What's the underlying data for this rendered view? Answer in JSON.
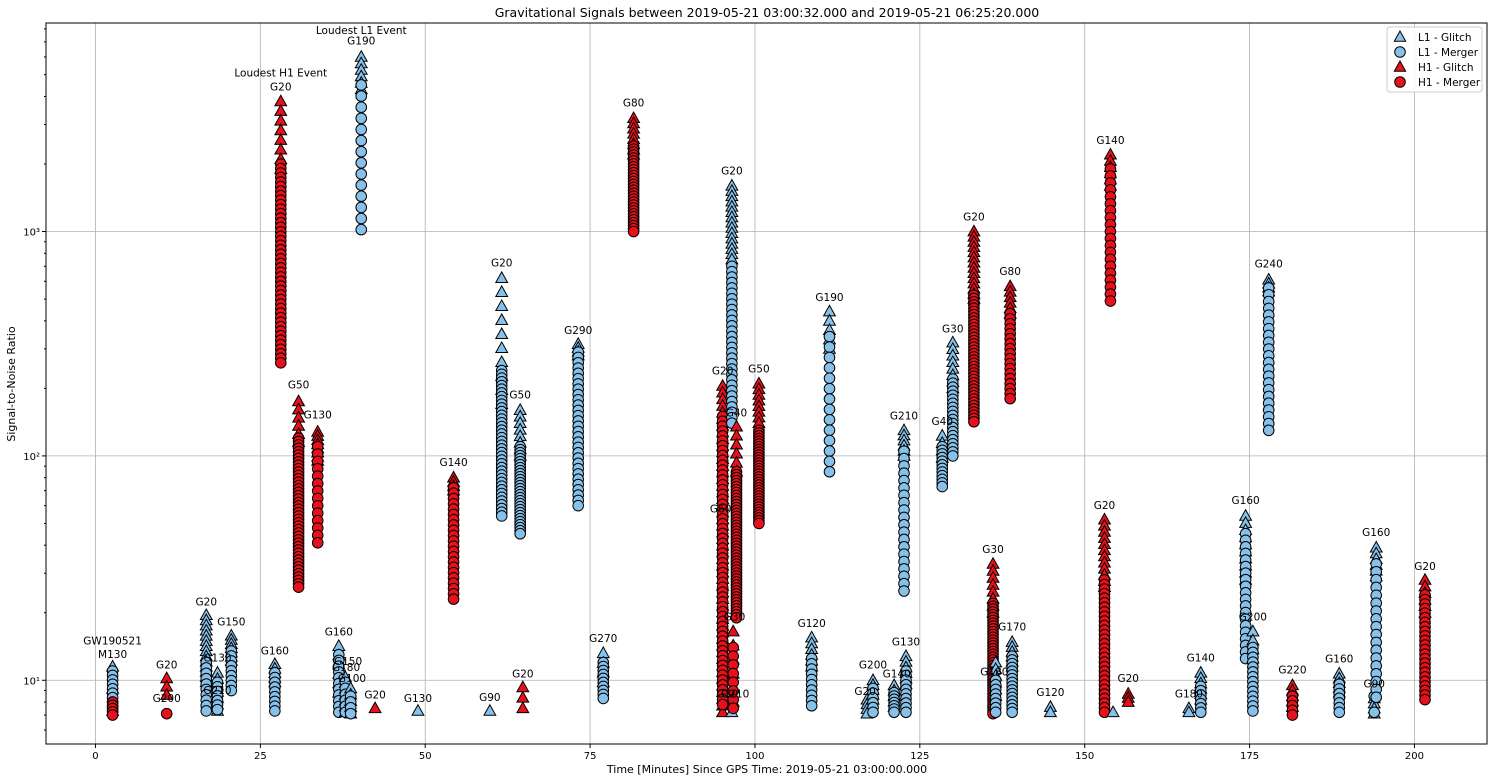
{
  "chart_data": {
    "type": "scatter",
    "title": "Gravitational Signals between 2019-05-21 03:00:32.000 and 2019-05-21 06:25:20.000",
    "xlabel": "Time [Minutes] Since GPS Time: 2019-05-21 03:00:00.000",
    "ylabel": "Signal-to-Noise Ratio",
    "yscale": "log",
    "xlim": [
      -7.5,
      211
    ],
    "ylim": [
      5.2,
      8500
    ],
    "grid": true,
    "legend_position": "top-right",
    "x_ticks": [
      0,
      25,
      50,
      75,
      100,
      125,
      150,
      175,
      200
    ],
    "x_tick_labels": [
      "0",
      "25",
      "50",
      "75",
      "100",
      "125",
      "150",
      "175",
      "200"
    ],
    "y_ticks": [
      10,
      100,
      1000
    ],
    "y_tick_labels": [
      "10¹",
      "10²",
      "10³"
    ],
    "colors": {
      "L1": "#87c1ea",
      "H1": "#e8101a",
      "edge": "#000000",
      "grid": "#b0b0b0"
    },
    "series": [
      {
        "name": "L1 - Glitch",
        "detector": "L1",
        "marker": "triangle"
      },
      {
        "name": "L1 - Merger",
        "detector": "L1",
        "marker": "circle"
      },
      {
        "name": "H1 - Glitch",
        "detector": "H1",
        "marker": "triangle"
      },
      {
        "name": "H1 - Merger",
        "detector": "H1",
        "marker": "circle"
      }
    ],
    "columns": [
      {
        "x": 2.6,
        "det": "L1",
        "top": 11.5,
        "bottom": 7.3,
        "tri": [
          11.5,
          7.3,
          3
        ],
        "circ": [
          11,
          7.3,
          10
        ]
      },
      {
        "x": 2.6,
        "det": "H1",
        "circ": [
          8,
          7.0,
          5
        ]
      },
      {
        "x": 10.8,
        "det": "H1",
        "tri": [
          10.2,
          8.6,
          3
        ],
        "circ": [
          7.1,
          7.1,
          1
        ]
      },
      {
        "x": 16.8,
        "det": "L1",
        "tri": [
          19.5,
          9.8,
          14
        ],
        "circ": [
          12,
          7.3,
          10
        ]
      },
      {
        "x": 18.5,
        "det": "L1",
        "tri": [
          10.8,
          7.3,
          7
        ],
        "circ": [
          9.8,
          7.4,
          7
        ]
      },
      {
        "x": 20.6,
        "det": "L1",
        "tri": [
          15.8,
          12.2,
          7
        ],
        "circ": [
          13.5,
          9.0,
          9
        ]
      },
      {
        "x": 27.2,
        "det": "L1",
        "tri": [
          11.8,
          9.8,
          5
        ],
        "circ": [
          10.8,
          7.3,
          9
        ]
      },
      {
        "x": 28.1,
        "det": "H1",
        "tri": [
          3800,
          1900,
          8
        ],
        "circ": [
          2000,
          260,
          45
        ]
      },
      {
        "x": 30.8,
        "det": "H1",
        "tri": [
          175,
          115,
          6
        ],
        "circ": [
          120,
          26,
          45
        ]
      },
      {
        "x": 33.7,
        "det": "H1",
        "tri": [
          128,
          95,
          8
        ],
        "circ": [
          110,
          41,
          14
        ]
      },
      {
        "x": 36.9,
        "det": "L1",
        "tri": [
          14.2,
          8.8,
          6
        ],
        "circ": [
          13,
          7.2,
          11
        ]
      },
      {
        "x": 37.9,
        "det": "L1",
        "tri": [
          10.3,
          7.2,
          7
        ],
        "circ": [
          9.8,
          7.2,
          6
        ]
      },
      {
        "x": 38.7,
        "det": "L1",
        "tri": [
          9.2,
          7.1,
          5
        ],
        "circ": [
          8.5,
          7.1,
          4
        ]
      },
      {
        "x": 40.3,
        "det": "L1",
        "tri": [
          6000,
          4300,
          6
        ],
        "circ": [
          4500,
          1020,
          14
        ]
      },
      {
        "x": 42.4,
        "det": "H1",
        "tri": [
          7.5,
          7.5,
          1
        ]
      },
      {
        "x": 48.9,
        "det": "L1",
        "tri": [
          7.3,
          7.3,
          1
        ]
      },
      {
        "x": 54.3,
        "det": "H1",
        "tri": [
          80,
          70,
          4
        ],
        "circ": [
          72,
          23,
          22
        ]
      },
      {
        "x": 59.8,
        "det": "L1",
        "tri": [
          7.3,
          7.3,
          1
        ]
      },
      {
        "x": 61.6,
        "det": "L1",
        "tri": [
          620,
          170,
          10
        ],
        "circ": [
          240,
          54,
          40
        ]
      },
      {
        "x": 64.4,
        "det": "L1",
        "tri": [
          160,
          100,
          8
        ],
        "circ": [
          110,
          45,
          30
        ]
      },
      {
        "x": 64.8,
        "det": "H1",
        "tri": [
          9.3,
          7.5,
          3
        ]
      },
      {
        "x": 73.2,
        "det": "L1",
        "tri": [
          315,
          280,
          4
        ],
        "circ": [
          290,
          60,
          30
        ]
      },
      {
        "x": 77.0,
        "det": "L1",
        "tri": [
          13.2,
          9.8,
          4
        ],
        "circ": [
          12,
          8.3,
          10
        ]
      },
      {
        "x": 81.6,
        "det": "H1",
        "tri": [
          3200,
          2200,
          8
        ],
        "circ": [
          2400,
          1000,
          30
        ]
      },
      {
        "x": 95.1,
        "det": "H1",
        "tri": [
          205,
          7.2,
          50
        ],
        "circ": [
          150,
          7.8,
          60
        ]
      },
      {
        "x": 96.5,
        "det": "L1",
        "tri": [
          1600,
          750,
          15
        ],
        "circ": [
          700,
          140,
          30
        ]
      },
      {
        "x": 96.5,
        "det": "L1",
        "tri": [
          7.2,
          7.2,
          1
        ]
      },
      {
        "x": 97.2,
        "det": "H1",
        "tri": [
          135,
          85,
          6
        ],
        "circ": [
          85,
          19,
          50
        ]
      },
      {
        "x": 96.7,
        "det": "H1",
        "tri": [
          16.5,
          8.0,
          6
        ],
        "circ": [
          14,
          7.5,
          8
        ]
      },
      {
        "x": 100.6,
        "det": "H1",
        "tri": [
          210,
          140,
          8
        ],
        "circ": [
          130,
          50,
          35
        ]
      },
      {
        "x": 108.6,
        "det": "L1",
        "tri": [
          15.5,
          11.5,
          6
        ],
        "circ": [
          12.5,
          7.7,
          10
        ]
      },
      {
        "x": 111.3,
        "det": "L1",
        "tri": [
          440,
          300,
          5
        ],
        "circ": [
          340,
          85,
          14
        ]
      },
      {
        "x": 117.0,
        "det": "L1",
        "tri": [
          8.2,
          7.1,
          4
        ]
      },
      {
        "x": 117.9,
        "det": "L1",
        "tri": [
          10.0,
          8.2,
          5
        ],
        "circ": [
          9.2,
          7.2,
          6
        ]
      },
      {
        "x": 121.1,
        "det": "L1",
        "tri": [
          9.5,
          7.6,
          5
        ],
        "circ": [
          8.8,
          7.2,
          7
        ]
      },
      {
        "x": 122.6,
        "det": "L1",
        "tri": [
          130,
          100,
          6
        ],
        "circ": [
          105,
          25,
          20
        ]
      },
      {
        "x": 122.9,
        "det": "L1",
        "tri": [
          12.8,
          9.6,
          6
        ],
        "circ": [
          11,
          7.2,
          10
        ]
      },
      {
        "x": 128.4,
        "det": "L1",
        "tri": [
          123,
          98,
          4
        ],
        "circ": [
          110,
          73,
          12
        ]
      },
      {
        "x": 130.0,
        "det": "L1",
        "tri": [
          320,
          200,
          8
        ],
        "circ": [
          220,
          100,
          20
        ]
      },
      {
        "x": 133.2,
        "det": "H1",
        "tri": [
          1000,
          500,
          14
        ],
        "circ": [
          520,
          142,
          40
        ]
      },
      {
        "x": 136.1,
        "det": "H1",
        "tri": [
          33,
          20,
          8
        ],
        "circ": [
          22,
          7.1,
          40
        ]
      },
      {
        "x": 136.5,
        "det": "L1",
        "tri": [
          12,
          8.5,
          6
        ],
        "circ": [
          10,
          7.2,
          8
        ]
      },
      {
        "x": 138.7,
        "det": "H1",
        "tri": [
          570,
          430,
          6
        ],
        "circ": [
          430,
          180,
          18
        ]
      },
      {
        "x": 139.0,
        "det": "L1",
        "tri": [
          14.8,
          11.5,
          6
        ],
        "circ": [
          12.8,
          7.2,
          16
        ]
      },
      {
        "x": 144.8,
        "det": "L1",
        "tri": [
          7.6,
          7.2,
          2
        ]
      },
      {
        "x": 153.0,
        "det": "H1",
        "tri": [
          52,
          26,
          12
        ],
        "circ": [
          28,
          7.2,
          30
        ]
      },
      {
        "x": 153.9,
        "det": "H1",
        "tri": [
          2200,
          1600,
          6
        ],
        "circ": [
          1900,
          490,
          20
        ]
      },
      {
        "x": 154.3,
        "det": "L1",
        "tri": [
          7.2,
          7.2,
          1
        ]
      },
      {
        "x": 156.6,
        "det": "H1",
        "tri": [
          8.7,
          8.0,
          3
        ]
      },
      {
        "x": 165.8,
        "det": "L1",
        "tri": [
          7.5,
          7.2,
          2
        ]
      },
      {
        "x": 167.6,
        "det": "L1",
        "tri": [
          10.8,
          8.2,
          6
        ],
        "circ": [
          9.4,
          7.2,
          7
        ]
      },
      {
        "x": 174.4,
        "det": "L1",
        "tri": [
          54,
          28,
          10
        ],
        "circ": [
          45,
          12.5,
          20
        ]
      },
      {
        "x": 175.5,
        "det": "L1",
        "tri": [
          16.5,
          12.5,
          4
        ],
        "circ": [
          14,
          7.3,
          14
        ]
      },
      {
        "x": 177.9,
        "det": "L1",
        "tri": [
          610,
          540,
          4
        ],
        "circ": [
          560,
          130,
          22
        ]
      },
      {
        "x": 181.5,
        "det": "H1",
        "tri": [
          9.5,
          7.6,
          5
        ],
        "circ": [
          8.5,
          7.0,
          5
        ]
      },
      {
        "x": 188.6,
        "det": "L1",
        "tri": [
          10.7,
          8.8,
          5
        ],
        "circ": [
          9.6,
          7.2,
          7
        ]
      },
      {
        "x": 193.9,
        "det": "L1",
        "tri": [
          8.3,
          7.1,
          4
        ],
        "circ": [
          8.5,
          7.2,
          2
        ]
      },
      {
        "x": 194.2,
        "det": "L1",
        "tri": [
          39,
          29,
          6
        ],
        "circ": [
          33,
          8.4,
          18
        ]
      },
      {
        "x": 201.6,
        "det": "H1",
        "tri": [
          28,
          20,
          6
        ],
        "circ": [
          24,
          8.2,
          24
        ]
      }
    ],
    "annotations": [
      {
        "text": "GW190521",
        "x": 2.6,
        "y": 14.4
      },
      {
        "text": "M130",
        "x": 2.6,
        "y": 12.6
      },
      {
        "text": "G20",
        "x": 10.8,
        "y": 11.3
      },
      {
        "text": "G200",
        "x": 10.8,
        "y": 8.0
      },
      {
        "text": "G20",
        "x": 16.8,
        "y": 21.5
      },
      {
        "text": "G130",
        "x": 18.5,
        "y": 12.1
      },
      {
        "text": "G210",
        "x": 18.5,
        "y": 8.7
      },
      {
        "text": "G150",
        "x": 20.6,
        "y": 17.5
      },
      {
        "text": "G160",
        "x": 27.2,
        "y": 13.0
      },
      {
        "text": "Loudest H1 Event",
        "x": 28.1,
        "y": 4900
      },
      {
        "text": "G20",
        "x": 28.1,
        "y": 4250
      },
      {
        "text": "G50",
        "x": 30.8,
        "y": 200
      },
      {
        "text": "G130",
        "x": 33.7,
        "y": 147
      },
      {
        "text": "G160",
        "x": 36.9,
        "y": 15.8
      },
      {
        "text": "G150",
        "x": 38.3,
        "y": 11.7
      },
      {
        "text": "G180",
        "x": 38.0,
        "y": 11.0
      },
      {
        "text": "G100",
        "x": 38.9,
        "y": 9.8
      },
      {
        "text": "Loudest L1 Event",
        "x": 40.3,
        "y": 7600
      },
      {
        "text": "G190",
        "x": 40.3,
        "y": 6800
      },
      {
        "text": "G20",
        "x": 42.4,
        "y": 8.3
      },
      {
        "text": "G130",
        "x": 48.9,
        "y": 8.0
      },
      {
        "text": "G140",
        "x": 54.3,
        "y": 90
      },
      {
        "text": "G90",
        "x": 59.8,
        "y": 8.1
      },
      {
        "text": "G20",
        "x": 61.6,
        "y": 700
      },
      {
        "text": "G50",
        "x": 64.4,
        "y": 180
      },
      {
        "text": "G20",
        "x": 64.8,
        "y": 10.3
      },
      {
        "text": "G290",
        "x": 73.2,
        "y": 350
      },
      {
        "text": "G270",
        "x": 77.0,
        "y": 14.8
      },
      {
        "text": "G80",
        "x": 81.6,
        "y": 3600
      },
      {
        "text": "G20",
        "x": 95.1,
        "y": 230
      },
      {
        "text": "G20",
        "x": 96.5,
        "y": 1800
      },
      {
        "text": "G40",
        "x": 97.2,
        "y": 150
      },
      {
        "text": "G60",
        "x": 94.8,
        "y": 56
      },
      {
        "text": "G30",
        "x": 96.9,
        "y": 18.5
      },
      {
        "text": "G30",
        "x": 95.8,
        "y": 8.4
      },
      {
        "text": "G210",
        "x": 97.0,
        "y": 8.4
      },
      {
        "text": "G50",
        "x": 100.6,
        "y": 235
      },
      {
        "text": "G120",
        "x": 108.6,
        "y": 17.3
      },
      {
        "text": "G190",
        "x": 111.3,
        "y": 490
      },
      {
        "text": "G200",
        "x": 117.9,
        "y": 11.3
      },
      {
        "text": "G20",
        "x": 116.7,
        "y": 8.6
      },
      {
        "text": "G140",
        "x": 121.5,
        "y": 10.3
      },
      {
        "text": "G130",
        "x": 122.9,
        "y": 14.3
      },
      {
        "text": "G210",
        "x": 122.6,
        "y": 145
      },
      {
        "text": "G40",
        "x": 128.4,
        "y": 137
      },
      {
        "text": "G30",
        "x": 130.0,
        "y": 355
      },
      {
        "text": "G20",
        "x": 133.2,
        "y": 1120
      },
      {
        "text": "G30",
        "x": 136.1,
        "y": 37
      },
      {
        "text": "G180",
        "x": 136.3,
        "y": 10.5
      },
      {
        "text": "G80",
        "x": 138.7,
        "y": 640
      },
      {
        "text": "G170",
        "x": 139.0,
        "y": 16.7
      },
      {
        "text": "G120",
        "x": 144.8,
        "y": 8.5
      },
      {
        "text": "G20",
        "x": 153.0,
        "y": 58
      },
      {
        "text": "G140",
        "x": 153.9,
        "y": 2450
      },
      {
        "text": "G20",
        "x": 156.6,
        "y": 9.8
      },
      {
        "text": "G180",
        "x": 165.8,
        "y": 8.4
      },
      {
        "text": "G140",
        "x": 167.6,
        "y": 12.1
      },
      {
        "text": "G160",
        "x": 174.4,
        "y": 61
      },
      {
        "text": "G200",
        "x": 175.5,
        "y": 18.5
      },
      {
        "text": "G240",
        "x": 177.9,
        "y": 690
      },
      {
        "text": "G220",
        "x": 181.5,
        "y": 10.7
      },
      {
        "text": "G160",
        "x": 188.6,
        "y": 12.0
      },
      {
        "text": "G90",
        "x": 193.9,
        "y": 9.3
      },
      {
        "text": "G160",
        "x": 194.2,
        "y": 44
      },
      {
        "text": "G20",
        "x": 201.6,
        "y": 31
      }
    ]
  }
}
